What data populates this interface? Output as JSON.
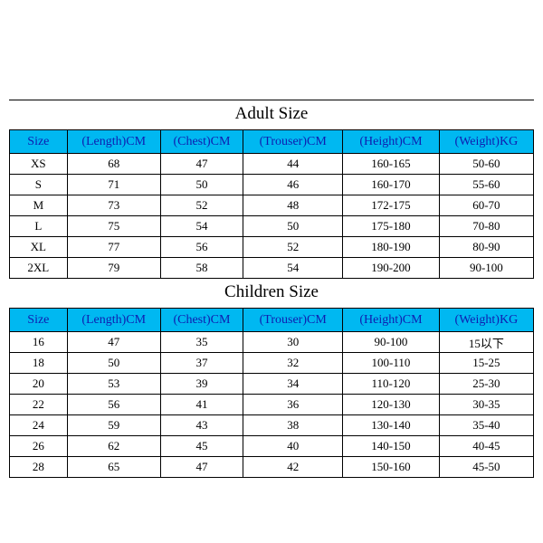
{
  "colors": {
    "header_bg": "#00b8f1",
    "header_text": "#0f1db0",
    "cell_text": "#000000",
    "border": "#000000",
    "page_bg": "#ffffff"
  },
  "typography": {
    "title_fontsize": 19,
    "header_fontsize": 14,
    "cell_fontsize": 13,
    "font_family": "Times New Roman / SimSun"
  },
  "columns": [
    {
      "key": "size",
      "label": "Size",
      "width_pct": 11
    },
    {
      "key": "length",
      "label": "(Length)CM",
      "width_pct": 17.8
    },
    {
      "key": "chest",
      "label": "(Chest)CM",
      "width_pct": 15.8
    },
    {
      "key": "trouser",
      "label": "(Trouser)CM",
      "width_pct": 19
    },
    {
      "key": "height",
      "label": "(Height)CM",
      "width_pct": 18.4
    },
    {
      "key": "weight",
      "label": "(Weight)KG",
      "width_pct": 18
    }
  ],
  "tables": [
    {
      "title": "Adult Size",
      "rows": [
        [
          "XS",
          "68",
          "47",
          "44",
          "160-165",
          "50-60"
        ],
        [
          "S",
          "71",
          "50",
          "46",
          "160-170",
          "55-60"
        ],
        [
          "M",
          "73",
          "52",
          "48",
          "172-175",
          "60-70"
        ],
        [
          "L",
          "75",
          "54",
          "50",
          "175-180",
          "70-80"
        ],
        [
          "XL",
          "77",
          "56",
          "52",
          "180-190",
          "80-90"
        ],
        [
          "2XL",
          "79",
          "58",
          "54",
          "190-200",
          "90-100"
        ]
      ]
    },
    {
      "title": "Children Size",
      "rows": [
        [
          "16",
          "47",
          "35",
          "30",
          "90-100",
          "15以下"
        ],
        [
          "18",
          "50",
          "37",
          "32",
          "100-110",
          "15-25"
        ],
        [
          "20",
          "53",
          "39",
          "34",
          "110-120",
          "25-30"
        ],
        [
          "22",
          "56",
          "41",
          "36",
          "120-130",
          "30-35"
        ],
        [
          "24",
          "59",
          "43",
          "38",
          "130-140",
          "35-40"
        ],
        [
          "26",
          "62",
          "45",
          "40",
          "140-150",
          "40-45"
        ],
        [
          "28",
          "65",
          "47",
          "42",
          "150-160",
          "45-50"
        ]
      ]
    }
  ]
}
